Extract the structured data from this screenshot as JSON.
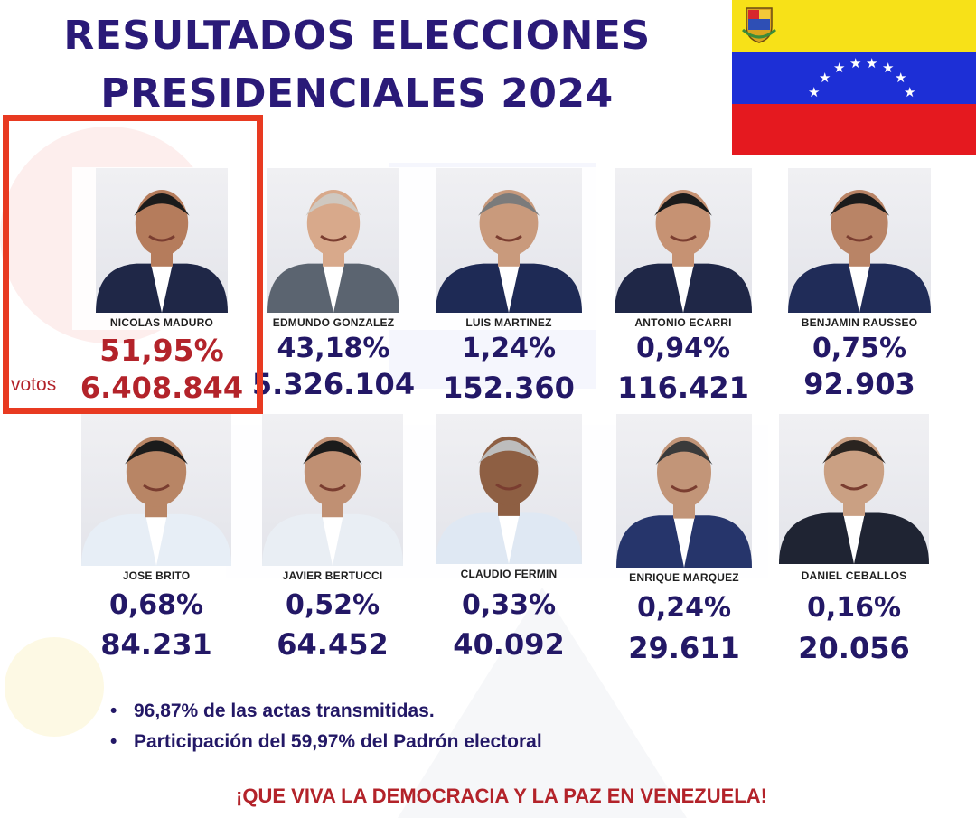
{
  "header": {
    "title_line1": "RESULTADOS ELECCIONES",
    "title_line2": "PRESIDENCIALES 2024"
  },
  "flag": {
    "name": "venezuela-flag",
    "colors": [
      "#f7e118",
      "#1d2fd6",
      "#e5191f"
    ]
  },
  "candidates": [
    {
      "name": "NICOLAS MADURO",
      "percent": "51,95%",
      "votes": "6.408.844",
      "winner": true
    },
    {
      "name": "EDMUNDO GONZALEZ",
      "percent": "43,18%",
      "votes": "5.326.104"
    },
    {
      "name": "LUIS MARTINEZ",
      "percent": "1,24%",
      "votes": "152.360"
    },
    {
      "name": "ANTONIO ECARRI",
      "percent": "0,94%",
      "votes": "116.421"
    },
    {
      "name": "BENJAMIN RAUSSEO",
      "percent": "0,75%",
      "votes": "92.903"
    },
    {
      "name": "JOSE BRITO",
      "percent": "0,68%",
      "votes": "84.231"
    },
    {
      "name": "JAVIER BERTUCCI",
      "percent": "0,52%",
      "votes": "64.452"
    },
    {
      "name": "CLAUDIO FERMIN",
      "percent": "0,33%",
      "votes": "40.092"
    },
    {
      "name": "ENRIQUE MARQUEZ",
      "percent": "0,24%",
      "votes": "29.611"
    },
    {
      "name": "DANIEL CEBALLOS",
      "percent": "0,16%",
      "votes": "20.056"
    }
  ],
  "votes_label": "votos",
  "notes": [
    "96,87% de las actas transmitidas.",
    "Participación del 59,97% del Padrón electoral"
  ],
  "slogan": "¡QUE VIVA LA DEMOCRACIA Y LA PAZ EN VENEZUELA!"
}
